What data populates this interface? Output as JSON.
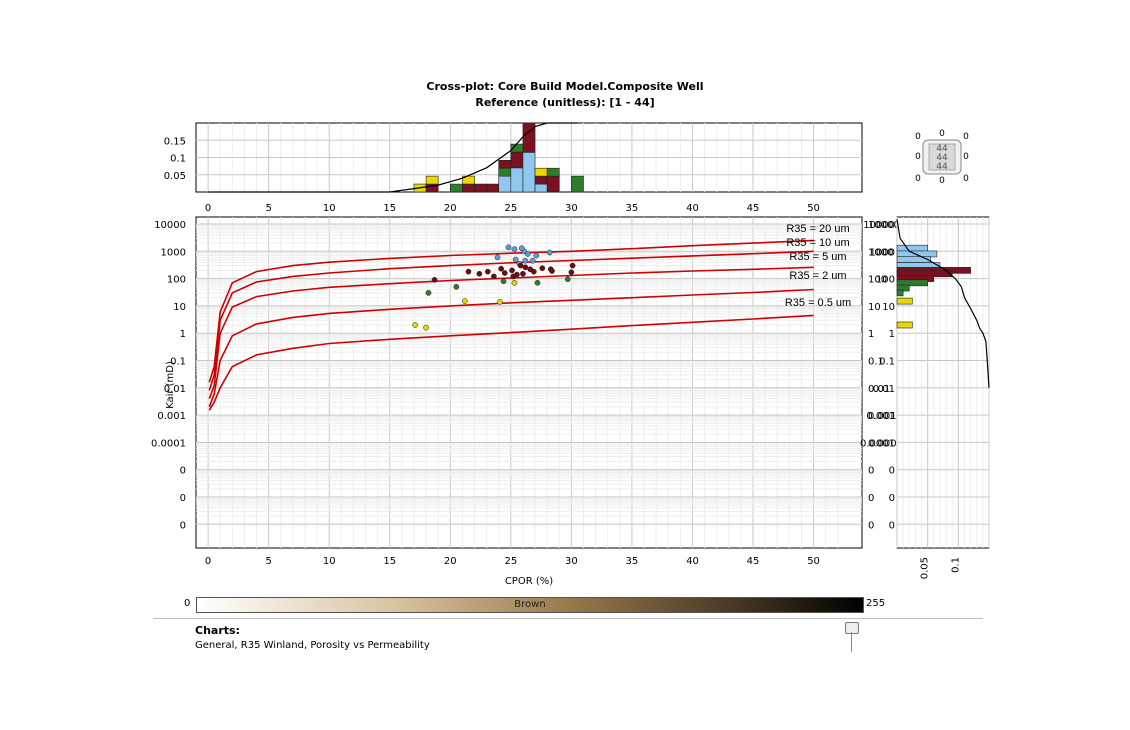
{
  "header": {
    "title": "Cross-plot: Core Build Model.Composite Well",
    "subtitle": "Reference (unitless): [1 - 44]"
  },
  "chart_data": {
    "type": "scatter",
    "xlabel": "CPOR (%)",
    "ylabel": "Kair (mD)",
    "x_ticks": [
      "0",
      "5",
      "10",
      "15",
      "20",
      "25",
      "30",
      "35",
      "40",
      "45",
      "50"
    ],
    "y_ticks": [
      "10000",
      "1000",
      "100",
      "10",
      "1",
      "0.1",
      "0.01",
      "0.001",
      "0.0001",
      "0",
      "0",
      "0"
    ],
    "xlim": [
      -1,
      54
    ],
    "log_y": true,
    "grid": true,
    "curves": [
      {
        "name": "R35 = 20 um",
        "label": "R35 = 20 um",
        "x": [
          0.1,
          0.5,
          1,
          2,
          4,
          7,
          10,
          15,
          20,
          25,
          30,
          35,
          40,
          45,
          50
        ],
        "y": [
          0.016,
          0.06,
          6,
          70,
          180,
          300,
          400,
          550,
          700,
          850,
          1000,
          1250,
          1600,
          2000,
          2500
        ]
      },
      {
        "name": "R35 = 10 um",
        "label": "R35 = 10 um",
        "x": [
          0.1,
          0.5,
          1,
          2,
          4,
          7,
          10,
          15,
          20,
          25,
          30,
          35,
          40,
          45,
          50
        ],
        "y": [
          0.008,
          0.03,
          3,
          30,
          75,
          120,
          160,
          230,
          300,
          380,
          460,
          560,
          680,
          820,
          1000
        ]
      },
      {
        "name": "R35 = 5 um",
        "label": "R35 = 5 um",
        "x": [
          0.1,
          0.5,
          1,
          2,
          4,
          7,
          10,
          15,
          20,
          25,
          30,
          35,
          40,
          45,
          50
        ],
        "y": [
          0.004,
          0.012,
          1,
          9,
          22,
          35,
          48,
          65,
          85,
          105,
          130,
          160,
          190,
          220,
          260
        ]
      },
      {
        "name": "R35 = 2 um",
        "label": "R35 = 2 um",
        "x": [
          0.1,
          0.5,
          1,
          2,
          4,
          7,
          10,
          15,
          20,
          25,
          30,
          35,
          40,
          45,
          50
        ],
        "y": [
          0.002,
          0.006,
          0.1,
          0.8,
          2.2,
          3.8,
          5.3,
          7.5,
          10,
          13,
          16,
          20,
          25,
          31,
          40
        ]
      },
      {
        "name": "R35 = 0.5 um",
        "label": "R35 = 0.5 um",
        "x": [
          0.1,
          0.5,
          1,
          2,
          4,
          7,
          10,
          15,
          20,
          25,
          30,
          35,
          40,
          45,
          50
        ],
        "y": [
          0.0015,
          0.003,
          0.01,
          0.06,
          0.16,
          0.28,
          0.42,
          0.6,
          0.8,
          1.05,
          1.4,
          1.9,
          2.5,
          3.3,
          4.5
        ]
      }
    ],
    "points": [
      {
        "x": 24.8,
        "y": 1400,
        "color": "#5aa0d6"
      },
      {
        "x": 25.3,
        "y": 1200,
        "color": "#5aa0d6"
      },
      {
        "x": 26.1,
        "y": 1000,
        "color": "#5aa0d6"
      },
      {
        "x": 25.9,
        "y": 1300,
        "color": "#5aa0d6"
      },
      {
        "x": 26.4,
        "y": 800,
        "color": "#5aa0d6"
      },
      {
        "x": 25.4,
        "y": 500,
        "color": "#5aa0d6"
      },
      {
        "x": 23.9,
        "y": 600,
        "color": "#5aa0d6"
      },
      {
        "x": 26.2,
        "y": 450,
        "color": "#5aa0d6"
      },
      {
        "x": 27.1,
        "y": 700,
        "color": "#5aa0d6"
      },
      {
        "x": 28.2,
        "y": 900,
        "color": "#5aa0d6"
      },
      {
        "x": 26.8,
        "y": 450,
        "color": "#5aa0d6"
      },
      {
        "x": 25.7,
        "y": 350,
        "color": "#5aa0d6"
      },
      {
        "x": 18.7,
        "y": 90,
        "color": "#6b0d12"
      },
      {
        "x": 21.5,
        "y": 180,
        "color": "#6b0d12"
      },
      {
        "x": 22.4,
        "y": 150,
        "color": "#6b0d12"
      },
      {
        "x": 23.1,
        "y": 180,
        "color": "#6b0d12"
      },
      {
        "x": 23.6,
        "y": 120,
        "color": "#6b0d12"
      },
      {
        "x": 24.2,
        "y": 230,
        "color": "#6b0d12"
      },
      {
        "x": 24.5,
        "y": 160,
        "color": "#6b0d12"
      },
      {
        "x": 25.1,
        "y": 200,
        "color": "#6b0d12"
      },
      {
        "x": 25.5,
        "y": 140,
        "color": "#6b0d12"
      },
      {
        "x": 25.8,
        "y": 300,
        "color": "#6b0d12"
      },
      {
        "x": 26.2,
        "y": 260,
        "color": "#6b0d12"
      },
      {
        "x": 26.6,
        "y": 220,
        "color": "#6b0d12"
      },
      {
        "x": 26.0,
        "y": 150,
        "color": "#6b0d12"
      },
      {
        "x": 26.9,
        "y": 180,
        "color": "#6b0d12"
      },
      {
        "x": 27.6,
        "y": 240,
        "color": "#6b0d12"
      },
      {
        "x": 28.3,
        "y": 220,
        "color": "#6b0d12"
      },
      {
        "x": 28.4,
        "y": 190,
        "color": "#6b0d12"
      },
      {
        "x": 30.1,
        "y": 300,
        "color": "#6b0d12"
      },
      {
        "x": 30.0,
        "y": 170,
        "color": "#6b0d12"
      },
      {
        "x": 25.2,
        "y": 120,
        "color": "#6b0d12"
      },
      {
        "x": 18.2,
        "y": 30,
        "color": "#2d7d2d"
      },
      {
        "x": 20.5,
        "y": 50,
        "color": "#2d7d2d"
      },
      {
        "x": 24.4,
        "y": 80,
        "color": "#2d7d2d"
      },
      {
        "x": 27.2,
        "y": 70,
        "color": "#2d7d2d"
      },
      {
        "x": 29.7,
        "y": 95,
        "color": "#2d7d2d"
      },
      {
        "x": 17.1,
        "y": 2,
        "color": "#e8d800"
      },
      {
        "x": 18.0,
        "y": 1.6,
        "color": "#e8d800"
      },
      {
        "x": 21.2,
        "y": 15,
        "color": "#e8d800"
      },
      {
        "x": 24.1,
        "y": 14,
        "color": "#e8d800"
      },
      {
        "x": 25.3,
        "y": 70,
        "color": "#e8d800"
      }
    ],
    "top_histogram": {
      "y_ticks": [
        "0.15",
        "0.1",
        "0.05"
      ],
      "x_ticks": [
        "0",
        "5",
        "10",
        "15",
        "20",
        "25",
        "30",
        "35",
        "40",
        "45",
        "50"
      ],
      "bins": [
        {
          "x": 17.5,
          "stack": [
            {
              "color": "#e8d800",
              "v": 0.023
            }
          ]
        },
        {
          "x": 18.5,
          "stack": [
            {
              "color": "#7b1020",
              "v": 0.023
            },
            {
              "color": "#e8d800",
              "v": 0.023
            }
          ]
        },
        {
          "x": 20.5,
          "stack": [
            {
              "color": "#2d7d2d",
              "v": 0.023
            }
          ]
        },
        {
          "x": 21.5,
          "stack": [
            {
              "color": "#7b1020",
              "v": 0.023
            },
            {
              "color": "#e8d800",
              "v": 0.023
            }
          ]
        },
        {
          "x": 22.5,
          "stack": [
            {
              "color": "#7b1020",
              "v": 0.023
            }
          ]
        },
        {
          "x": 23.5,
          "stack": [
            {
              "color": "#7b1020",
              "v": 0.023
            }
          ]
        },
        {
          "x": 24.5,
          "stack": [
            {
              "color": "#8fc7ef",
              "v": 0.046
            },
            {
              "color": "#2d7d2d",
              "v": 0.023
            },
            {
              "color": "#7b1020",
              "v": 0.023
            }
          ]
        },
        {
          "x": 25.5,
          "stack": [
            {
              "color": "#8fc7ef",
              "v": 0.07
            },
            {
              "color": "#7b1020",
              "v": 0.046
            },
            {
              "color": "#2d7d2d",
              "v": 0.023
            }
          ]
        },
        {
          "x": 26.5,
          "stack": [
            {
              "color": "#8fc7ef",
              "v": 0.115
            },
            {
              "color": "#7b1020",
              "v": 0.085
            }
          ]
        },
        {
          "x": 27.5,
          "stack": [
            {
              "color": "#8fc7ef",
              "v": 0.023
            },
            {
              "color": "#7b1020",
              "v": 0.023
            },
            {
              "color": "#e8d800",
              "v": 0.023
            }
          ]
        },
        {
          "x": 28.5,
          "stack": [
            {
              "color": "#7b1020",
              "v": 0.046
            },
            {
              "color": "#2d7d2d",
              "v": 0.023
            }
          ]
        },
        {
          "x": 30.5,
          "stack": [
            {
              "color": "#2d7d2d",
              "v": 0.046
            }
          ]
        }
      ],
      "cdf": {
        "x": [
          0,
          15,
          17,
          19,
          21,
          23,
          25,
          26,
          27,
          28,
          29,
          30.5
        ],
        "y": [
          0,
          0,
          0.01,
          0.02,
          0.04,
          0.07,
          0.12,
          0.16,
          0.19,
          0.2,
          0.205,
          0.21
        ]
      }
    },
    "right_histogram": {
      "x_ticks": [
        "0.05",
        "0.1"
      ],
      "y_labels": [
        "10000",
        "1000",
        "100",
        "10",
        "1",
        "0.1",
        "0.01",
        "0.001",
        "0.0001",
        "0",
        "0",
        "0"
      ],
      "bins": [
        {
          "y": 1300,
          "w": 0.05,
          "color": "#8fc7ef"
        },
        {
          "y": 800,
          "w": 0.065,
          "color": "#8fc7ef"
        },
        {
          "y": 500,
          "w": 0.055,
          "color": "#8fc7ef"
        },
        {
          "y": 300,
          "w": 0.07,
          "color": "#8fc7ef"
        },
        {
          "y": 200,
          "w": 0.12,
          "color": "#7b1020"
        },
        {
          "y": 150,
          "w": 0.09,
          "color": "#7b1020"
        },
        {
          "y": 100,
          "w": 0.06,
          "color": "#7b1020"
        },
        {
          "y": 70,
          "w": 0.05,
          "color": "#2d7d2d"
        },
        {
          "y": 45,
          "w": 0.02,
          "color": "#2d7d2d"
        },
        {
          "y": 30,
          "w": 0.01,
          "color": "#2d7d2d"
        },
        {
          "y": 15,
          "w": 0.025,
          "color": "#e8d800"
        },
        {
          "y": 2,
          "w": 0.025,
          "color": "#e8d800"
        }
      ],
      "cdf": {
        "y": [
          15000,
          3000,
          1000,
          500,
          200,
          100,
          50,
          20,
          8,
          3,
          1.5,
          1,
          0.5,
          0.05,
          0.01
        ],
        "v": [
          0,
          0.005,
          0.02,
          0.05,
          0.08,
          0.095,
          0.105,
          0.11,
          0.12,
          0.13,
          0.135,
          0.14,
          0.145,
          0.148,
          0.15
        ]
      }
    }
  },
  "legend_box": {
    "center": "44",
    "center2": "44",
    "center3": "44",
    "zero": "0"
  },
  "colorbar": {
    "name": "Brown",
    "min": "0",
    "max": "255"
  },
  "footer": {
    "heading": "Charts:",
    "items": "General, R35 Winland, Porosity vs Permeability"
  },
  "colors": {
    "curve": "#d00000",
    "grid": "#dcdcdc"
  }
}
